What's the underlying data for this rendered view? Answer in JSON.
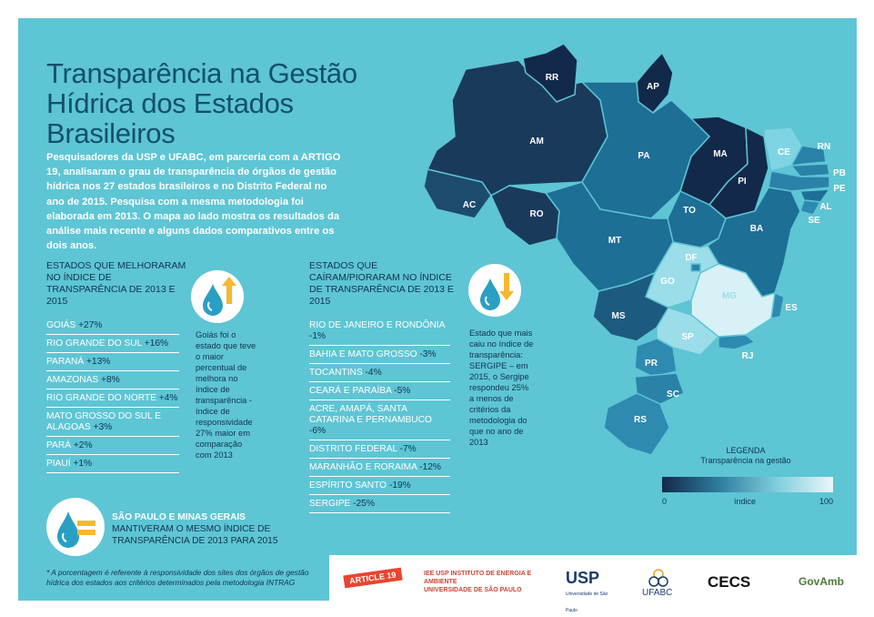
{
  "title_line1": "Transparência na Gestão",
  "title_line2": "Hídrica dos Estados Brasileiros",
  "intro": "Pesquisadores da USP e UFABC, em parceria com a ARTIGO 19, analisaram o grau de transparência de órgãos de gestão hídrica nos 27 estados brasileiros e no Distrito Federal no ano de 2015. Pesquisa com a mesma metodologia foi elaborada em 2013. O mapa ao lado mostra os resultados da análise mais recente e alguns dados comparativos entre os dois anos.",
  "improved": {
    "heading": "ESTADOS QUE MELHORARAM NO ÍNDICE DE TRANSPARÊNCIA DE 2013 E 2015",
    "items": [
      {
        "name": "GOIÁS",
        "value": "+27%"
      },
      {
        "name": "RIO GRANDE DO SUL",
        "value": "+16%"
      },
      {
        "name": "PARANÁ",
        "value": "+13%"
      },
      {
        "name": "AMAZONAS",
        "value": "+8%"
      },
      {
        "name": "RIO GRANDE DO NORTE",
        "value": "+4%"
      },
      {
        "name": "MATO GROSSO DO SUL E ALAGOAS",
        "value": "+3%"
      },
      {
        "name": "PARÁ",
        "value": "+2%"
      },
      {
        "name": "PIAUÍ",
        "value": "+1%"
      }
    ],
    "note": "Goiás foi o estado que teve o maior percentual de melhora no índice de transparência - índice de responsividade 27% maior em comparação com 2013"
  },
  "worsened": {
    "heading": "ESTADOS QUE CAÍRAM/PIORARAM NO ÍNDICE DE TRANSPARÊNCIA DE 2013 E 2015",
    "items": [
      {
        "name": "RIO DE JANEIRO E RONDÔNIA",
        "value": "-1%"
      },
      {
        "name": "BAHIA E MATO GROSSO",
        "value": "-3%"
      },
      {
        "name": "TOCANTINS",
        "value": "-4%"
      },
      {
        "name": "CEARÁ E PARAÍBA",
        "value": "-5%"
      },
      {
        "name": "ACRE, AMAPÁ, SANTA CATARINA E PERNAMBUCO",
        "value": "-6%"
      },
      {
        "name": "DISTRITO FEDERAL",
        "value": "-7%"
      },
      {
        "name": "MARANHÃO E RORAIMA",
        "value": "-12%"
      },
      {
        "name": "ESPÍRITO SANTO",
        "value": "-19%"
      },
      {
        "name": "SERGIPE",
        "value": "-25%"
      }
    ],
    "note": "Estado que mais caiu no índice de transparência: SERGIPE – em 2015, o Sergipe respondeu 25% a menos de critérios da metodologia do que no ano de 2013"
  },
  "kept": {
    "states": "SÃO PAULO E MINAS GERAIS",
    "text": "MANTIVERAM O MESMO  ÍNDICE DE TRANSPARÊNCIA DE 2013 PARA 2015"
  },
  "footnote": "* A porcentagem é referente à responsividade dos sites dos órgãos de gestão hídrica dos estados aos critérios determinados pela metodologia INTRAG",
  "map": {
    "states": [
      "RR",
      "AP",
      "AM",
      "PA",
      "MA",
      "CE",
      "RN",
      "PB",
      "PE",
      "AL",
      "SE",
      "PI",
      "AC",
      "RO",
      "TO",
      "BA",
      "MT",
      "DF",
      "GO",
      "MG",
      "ES",
      "MS",
      "SP",
      "RJ",
      "PR",
      "SC",
      "RS"
    ]
  },
  "legend": {
    "title": "LEGENDA",
    "subtitle": "Transparência na gestão",
    "min": "0",
    "mid": "índice",
    "max": "100"
  },
  "logos": [
    "ARTICLE 19",
    "IEE USP",
    "INSTITUTO DE ENERGIA E AMBIENTE",
    "UNIVERSIDADE DE SÃO PAULO",
    "USP",
    "Universidade de São Paulo",
    "UFABC",
    "CECS",
    "GovAmb"
  ],
  "colors": {
    "panel": "#5ec5d4",
    "dark": "#12294a",
    "title": "#12506e",
    "arrow": "#f5b82e"
  }
}
